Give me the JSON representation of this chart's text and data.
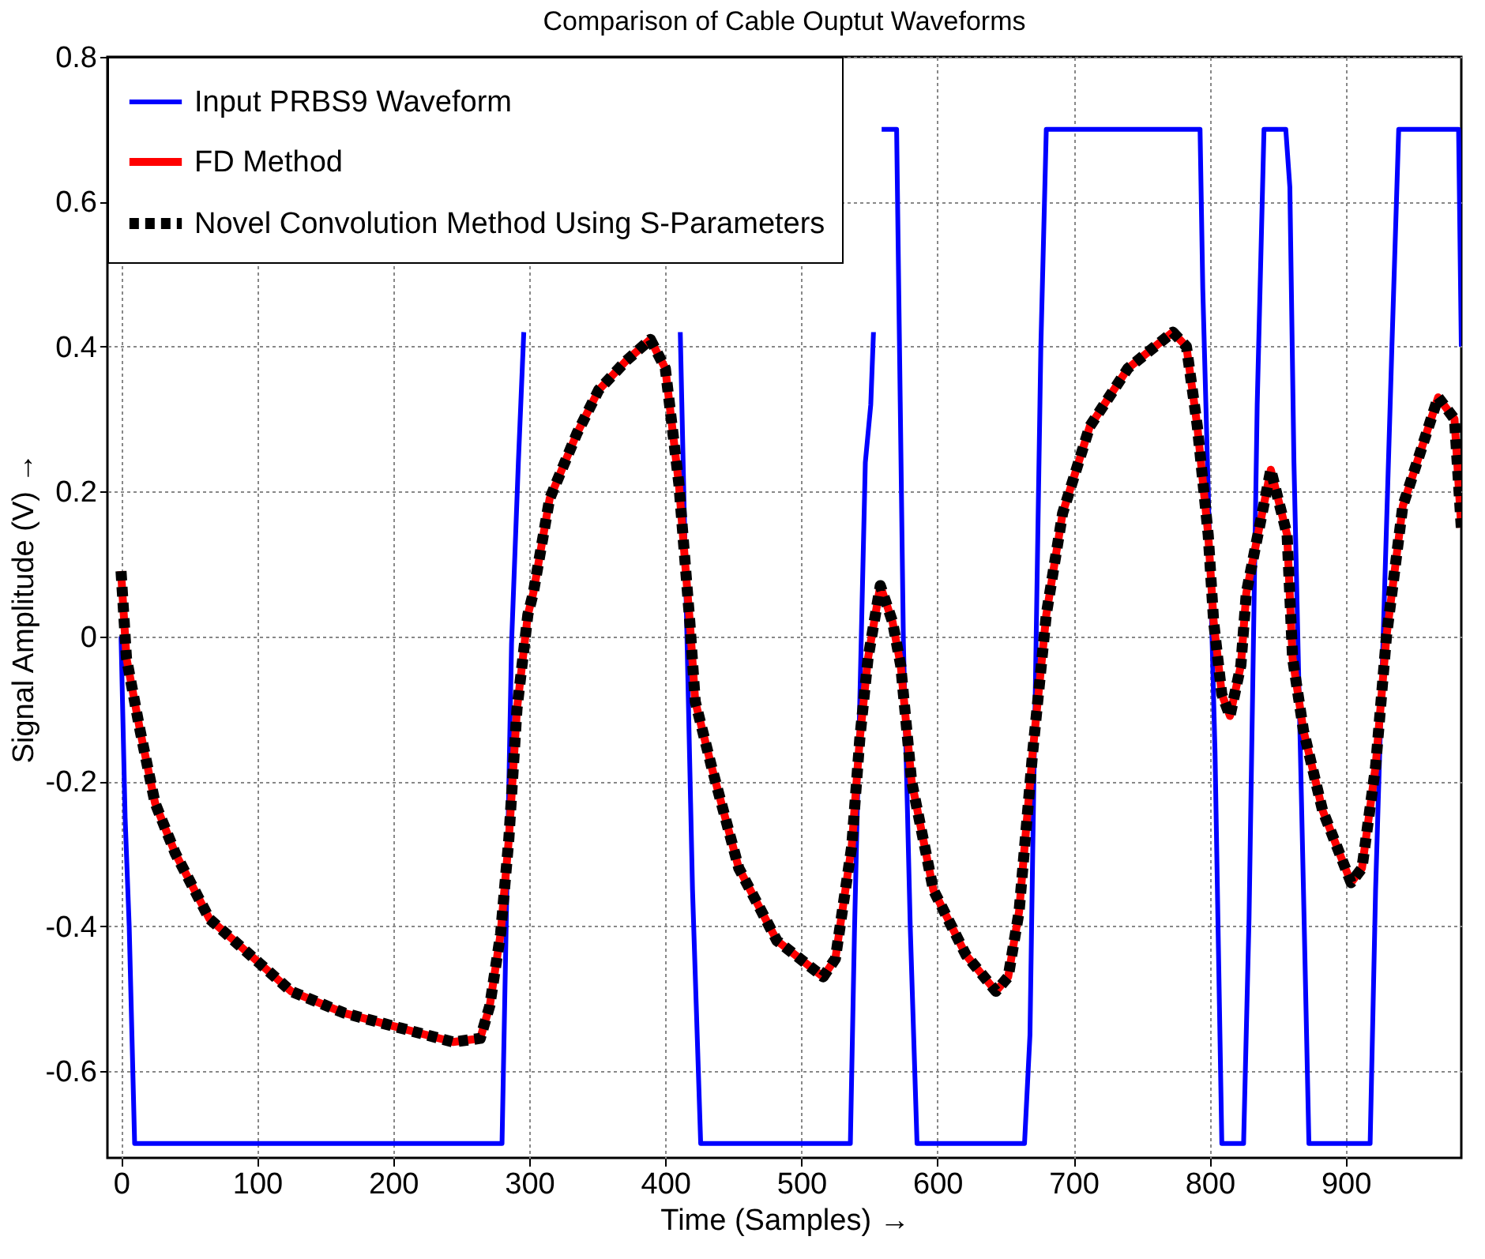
{
  "chart_data": {
    "type": "line",
    "title": "Comparison of Cable Ouptut Waveforms",
    "xlabel": "Time (Samples) →",
    "ylabel": "Signal Amplitude (V) →",
    "xlim": [
      -10,
      985
    ],
    "ylim": [
      -0.72,
      0.8
    ],
    "xticks": [
      0,
      100,
      200,
      300,
      400,
      500,
      600,
      700,
      800,
      900
    ],
    "yticks": [
      -0.6,
      -0.4,
      -0.2,
      0,
      0.2,
      0.4,
      0.6,
      0.8
    ],
    "grid": true,
    "legend": "top left",
    "marker": "none",
    "series": [
      {
        "name": "Input PRBS9 Waveform",
        "color": "#0000ff",
        "line_style": "solid",
        "x": [
          0,
          3,
          6,
          10,
          280,
          287,
          292,
          296,
          350,
          411,
          420,
          426,
          536,
          539,
          547,
          551,
          553,
          556,
          559,
          570,
          575,
          580,
          585,
          664,
          668,
          670,
          676,
          680,
          793,
          795,
          799,
          804,
          809,
          825,
          829,
          835,
          840,
          856,
          859,
          862,
          869,
          873,
          918,
          922,
          934,
          939,
          983,
          985
        ],
        "values": [
          0,
          -0.25,
          -0.4,
          -0.7,
          -0.7,
          -0.01,
          0.24,
          0.42,
          null,
          0.42,
          -0.35,
          -0.7,
          -0.7,
          -0.41,
          0.24,
          0.32,
          0.42,
          null,
          0.7,
          0.7,
          -0.01,
          -0.4,
          -0.7,
          -0.7,
          -0.55,
          -0.3,
          0.4,
          0.7,
          0.7,
          0.48,
          0.2,
          -0.16,
          -0.7,
          -0.7,
          -0.39,
          0.32,
          0.7,
          0.7,
          0.62,
          0.24,
          -0.35,
          -0.7,
          -0.7,
          -0.35,
          0.4,
          0.7,
          0.7,
          0.4
        ]
      },
      {
        "name": "FD Method",
        "color": "#ff0000",
        "line_style": "solid",
        "x": [
          0,
          4,
          14,
          25,
          40,
          65,
          101,
          125,
          164,
          204,
          244,
          264,
          271,
          279,
          285,
          291,
          299,
          303,
          315,
          335,
          351,
          371,
          389,
          400,
          410,
          418,
          422,
          434,
          454,
          482,
          516,
          525,
          537,
          543,
          549,
          558,
          567,
          573,
          581,
          597,
          621,
          643,
          652,
          660,
          670,
          680,
          692,
          712,
          740,
          773,
          783,
          791,
          799,
          803,
          809,
          815,
          823,
          827,
          845,
          857,
          861,
          869,
          883,
          904,
          912,
          922,
          930,
          942,
          968,
          980,
          985
        ],
        "values": [
          0.09,
          -0.03,
          -0.13,
          -0.23,
          -0.3,
          -0.39,
          -0.45,
          -0.49,
          -0.52,
          -0.54,
          -0.56,
          -0.555,
          -0.51,
          -0.41,
          -0.28,
          -0.1,
          0.03,
          0.06,
          0.19,
          0.28,
          0.34,
          0.38,
          0.41,
          0.37,
          0.21,
          0.02,
          -0.09,
          -0.18,
          -0.32,
          -0.42,
          -0.47,
          -0.445,
          -0.29,
          -0.14,
          -0.03,
          0.07,
          0.02,
          -0.04,
          -0.2,
          -0.35,
          -0.44,
          -0.49,
          -0.47,
          -0.38,
          -0.16,
          0.03,
          0.17,
          0.29,
          0.37,
          0.42,
          0.4,
          0.29,
          0.14,
          0.02,
          -0.08,
          -0.11,
          -0.04,
          0.06,
          0.23,
          0.14,
          -0.03,
          -0.13,
          -0.24,
          -0.34,
          -0.32,
          -0.18,
          0,
          0.18,
          0.33,
          0.3,
          0.15
        ]
      },
      {
        "name": "Novel Convolution Method Using S-Parameters",
        "color": "#000000",
        "line_style": "dashed",
        "x": [
          0,
          4,
          14,
          25,
          40,
          65,
          101,
          125,
          164,
          204,
          244,
          264,
          271,
          279,
          285,
          291,
          299,
          303,
          315,
          335,
          351,
          371,
          389,
          400,
          410,
          418,
          422,
          434,
          454,
          482,
          516,
          525,
          537,
          543,
          549,
          558,
          567,
          573,
          581,
          597,
          621,
          643,
          652,
          660,
          670,
          680,
          692,
          712,
          740,
          773,
          783,
          791,
          799,
          803,
          809,
          815,
          823,
          827,
          845,
          857,
          861,
          869,
          883,
          904,
          912,
          922,
          930,
          942,
          968,
          980,
          985
        ],
        "values": [
          0.09,
          -0.03,
          -0.13,
          -0.23,
          -0.3,
          -0.39,
          -0.45,
          -0.49,
          -0.52,
          -0.54,
          -0.56,
          -0.555,
          -0.51,
          -0.41,
          -0.28,
          -0.1,
          0.03,
          0.06,
          0.19,
          0.28,
          0.34,
          0.38,
          0.41,
          0.37,
          0.21,
          0.02,
          -0.09,
          -0.18,
          -0.32,
          -0.42,
          -0.47,
          -0.445,
          -0.29,
          -0.14,
          -0.03,
          0.07,
          0.02,
          -0.04,
          -0.2,
          -0.35,
          -0.44,
          -0.49,
          -0.47,
          -0.38,
          -0.16,
          0.03,
          0.17,
          0.29,
          0.37,
          0.42,
          0.4,
          0.29,
          0.14,
          0.02,
          -0.08,
          -0.11,
          -0.04,
          0.06,
          0.23,
          0.14,
          -0.03,
          -0.13,
          -0.24,
          -0.34,
          -0.32,
          -0.18,
          0,
          0.18,
          0.33,
          0.3,
          0.15
        ]
      }
    ]
  }
}
